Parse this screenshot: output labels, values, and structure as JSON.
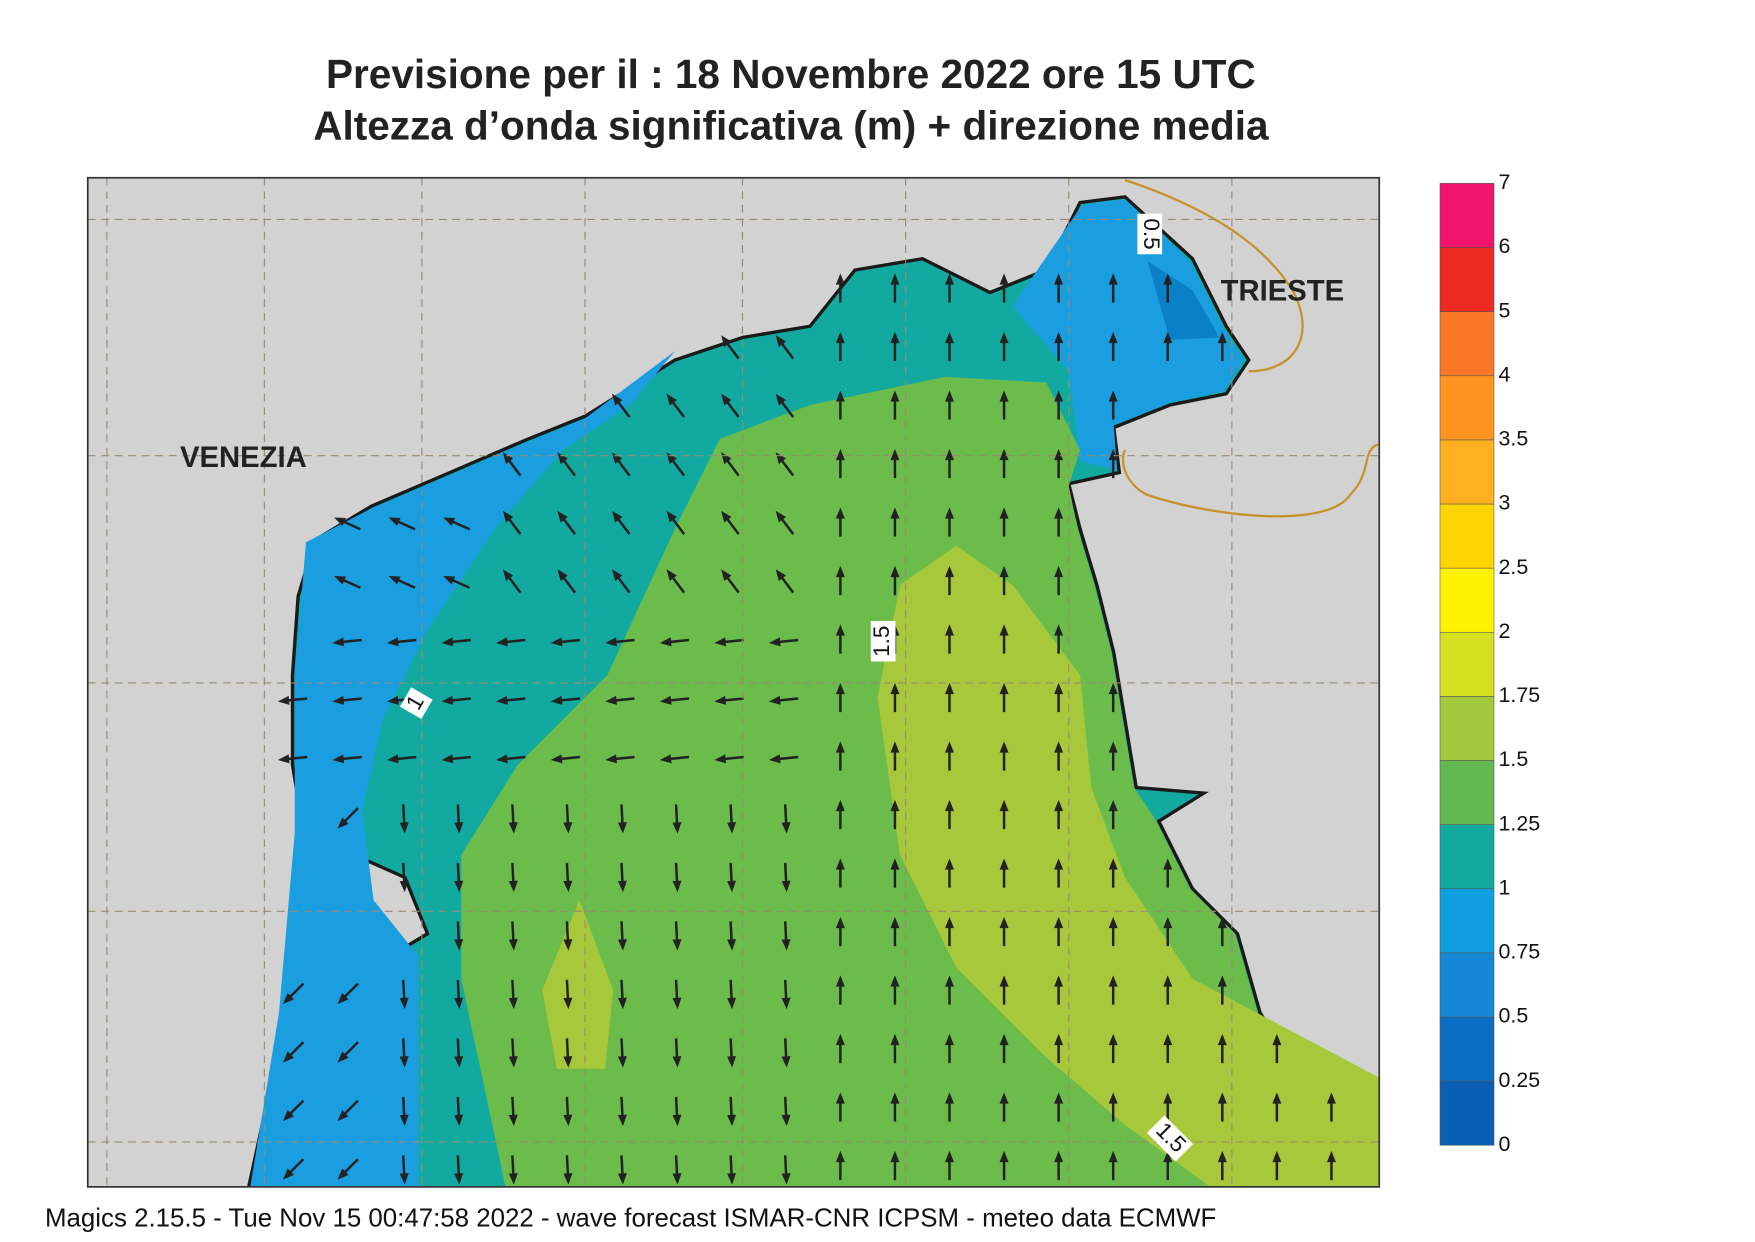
{
  "header": {
    "title": [
      "Previsione per il  :  18 Novembre  2022   ore 15 UTC",
      "Altezza d’onda significativa (m) + direzione media"
    ]
  },
  "map": {
    "cities": [
      "VENEZIA",
      "TRIESTE"
    ],
    "contour_labels": [
      "0.5",
      "1",
      "1.5",
      "1.5"
    ]
  },
  "colorbar": {
    "ticks": [
      0,
      0.25,
      0.5,
      0.75,
      1,
      1.25,
      1.5,
      1.75,
      2,
      2.5,
      3,
      3.5,
      4,
      5,
      6,
      7
    ],
    "colors": [
      "#0a5fb4",
      "#0a6fc4",
      "#1488d4",
      "#109fe0",
      "#12aaa0",
      "#62b850",
      "#a2c83c",
      "#d6e020",
      "#fff200",
      "#ffd400",
      "#ffb01e",
      "#ff951e",
      "#f87828",
      "#ec2a22",
      "#f0156a"
    ]
  },
  "footer": "Magics 2.15.5 - Tue Nov 15 00:47:58 2022 - wave forecast  ISMAR-CNR  ICPSM - meteo data    ECMWF"
}
